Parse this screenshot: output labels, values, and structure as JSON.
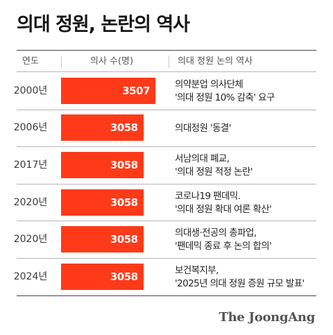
{
  "title": "의대 정원, 논란의 역사",
  "table_headers": {
    "year": "연도",
    "count": "의사 수(명)",
    "history": "의대 정원 논의 역사"
  },
  "colors": {
    "bar": "#ff3a19",
    "bar_text": "#ffffff"
  },
  "brand": "The JoongAng",
  "chart_data": {
    "type": "bar",
    "orientation": "horizontal",
    "title": "의대 정원, 논란의 역사",
    "categories": [
      "2000년",
      "2006년",
      "2017년",
      "2020년",
      "2020년",
      "2024년"
    ],
    "values": [
      3507,
      3058,
      3058,
      3058,
      3058,
      3058
    ],
    "value_labels": [
      "3507",
      "3058",
      "3058",
      "3058",
      "3058",
      "3058"
    ],
    "histories": [
      [
        "의약분업 의사단체",
        "'의대 정원 10% 감축' 요구"
      ],
      [
        "의대정원 '동결'"
      ],
      [
        "서남의대 폐교,",
        "'의대 정원 적정 논란'"
      ],
      [
        "코로나19 팬데믹.",
        "'의대 정원 확대 여론 확산'"
      ],
      [
        "의대생·전공의 총파업,",
        "'팬데믹 종료 후 논의 합의'"
      ],
      [
        "보건복지부,",
        "'2025년 의대 정원 증원 규모 발표'"
      ]
    ]
  }
}
